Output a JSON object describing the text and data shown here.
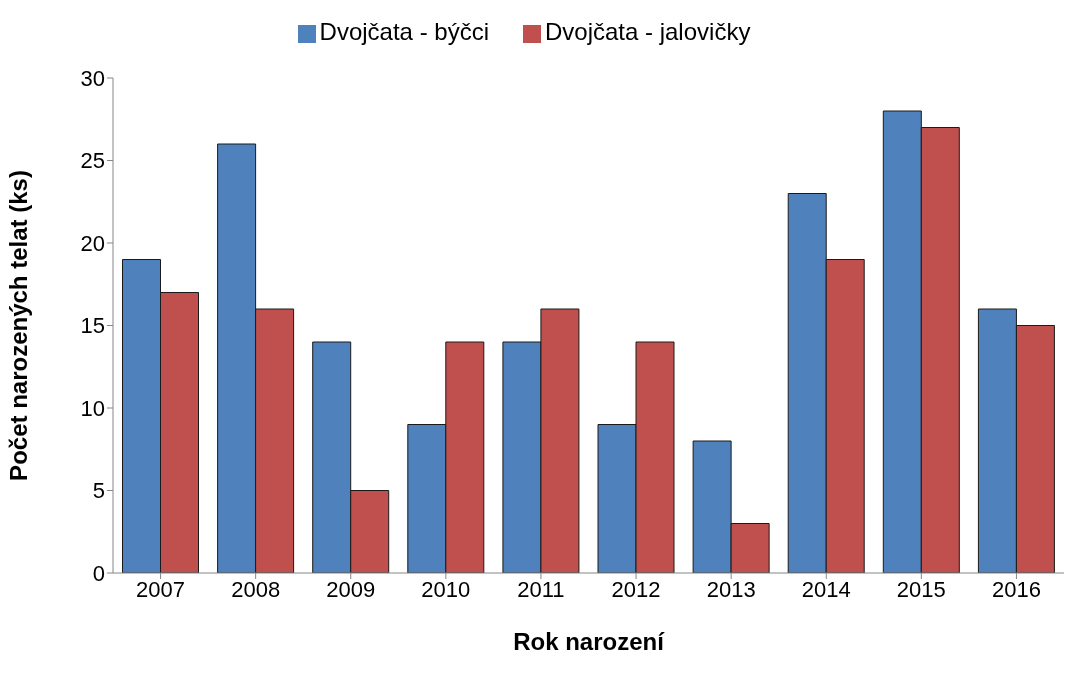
{
  "chart_data": {
    "type": "bar",
    "xlabel": "Rok narození",
    "ylabel": "Počet narozených telat (ks)",
    "categories": [
      "2007",
      "2008",
      "2009",
      "2010",
      "2011",
      "2012",
      "2013",
      "2014",
      "2015",
      "2016"
    ],
    "series": [
      {
        "name": "Dvojčata - býčci",
        "color": "#4f81bd",
        "values": [
          19,
          26,
          14,
          9,
          14,
          9,
          8,
          23,
          28,
          16
        ]
      },
      {
        "name": "Dvojčata - jalovičky",
        "color": "#c0504d",
        "values": [
          17,
          16,
          5,
          14,
          16,
          14,
          3,
          19,
          27,
          15
        ]
      }
    ],
    "ylim": [
      0,
      30
    ],
    "yticks": [
      0,
      5,
      10,
      15,
      20,
      25,
      30
    ],
    "grid": false,
    "legend": "top"
  }
}
